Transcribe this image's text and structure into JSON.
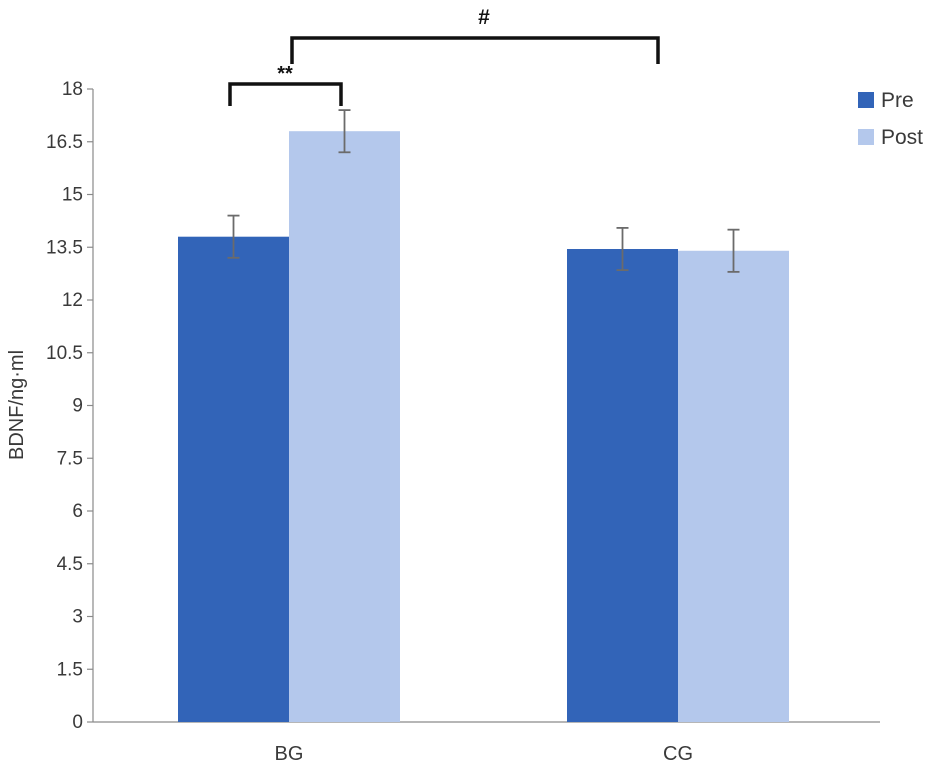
{
  "chart_data": {
    "type": "bar",
    "ylabel": "BDNF/ng·ml",
    "xlabel": "",
    "ylim": [
      0,
      18
    ],
    "yticks": [
      "0",
      "1.5",
      "3",
      "4.5",
      "6",
      "7.5",
      "9",
      "10.5",
      "12",
      "13.5",
      "15",
      "16.5",
      "18"
    ],
    "categories": [
      "BG",
      "CG"
    ],
    "series": [
      {
        "name": "Pre",
        "color": "#3264b8",
        "values": [
          13.8,
          13.45
        ],
        "errors": [
          0.6,
          0.6
        ]
      },
      {
        "name": "Post",
        "color": "#b4c8ec",
        "values": [
          16.8,
          13.4
        ],
        "errors": [
          0.6,
          0.6
        ]
      }
    ],
    "legend_position": "top-right",
    "grid": false,
    "annotations": [
      {
        "label": "**",
        "from": "BG-Pre",
        "to": "BG-Post"
      },
      {
        "label": "#",
        "from": "BG",
        "to": "CG"
      }
    ]
  }
}
